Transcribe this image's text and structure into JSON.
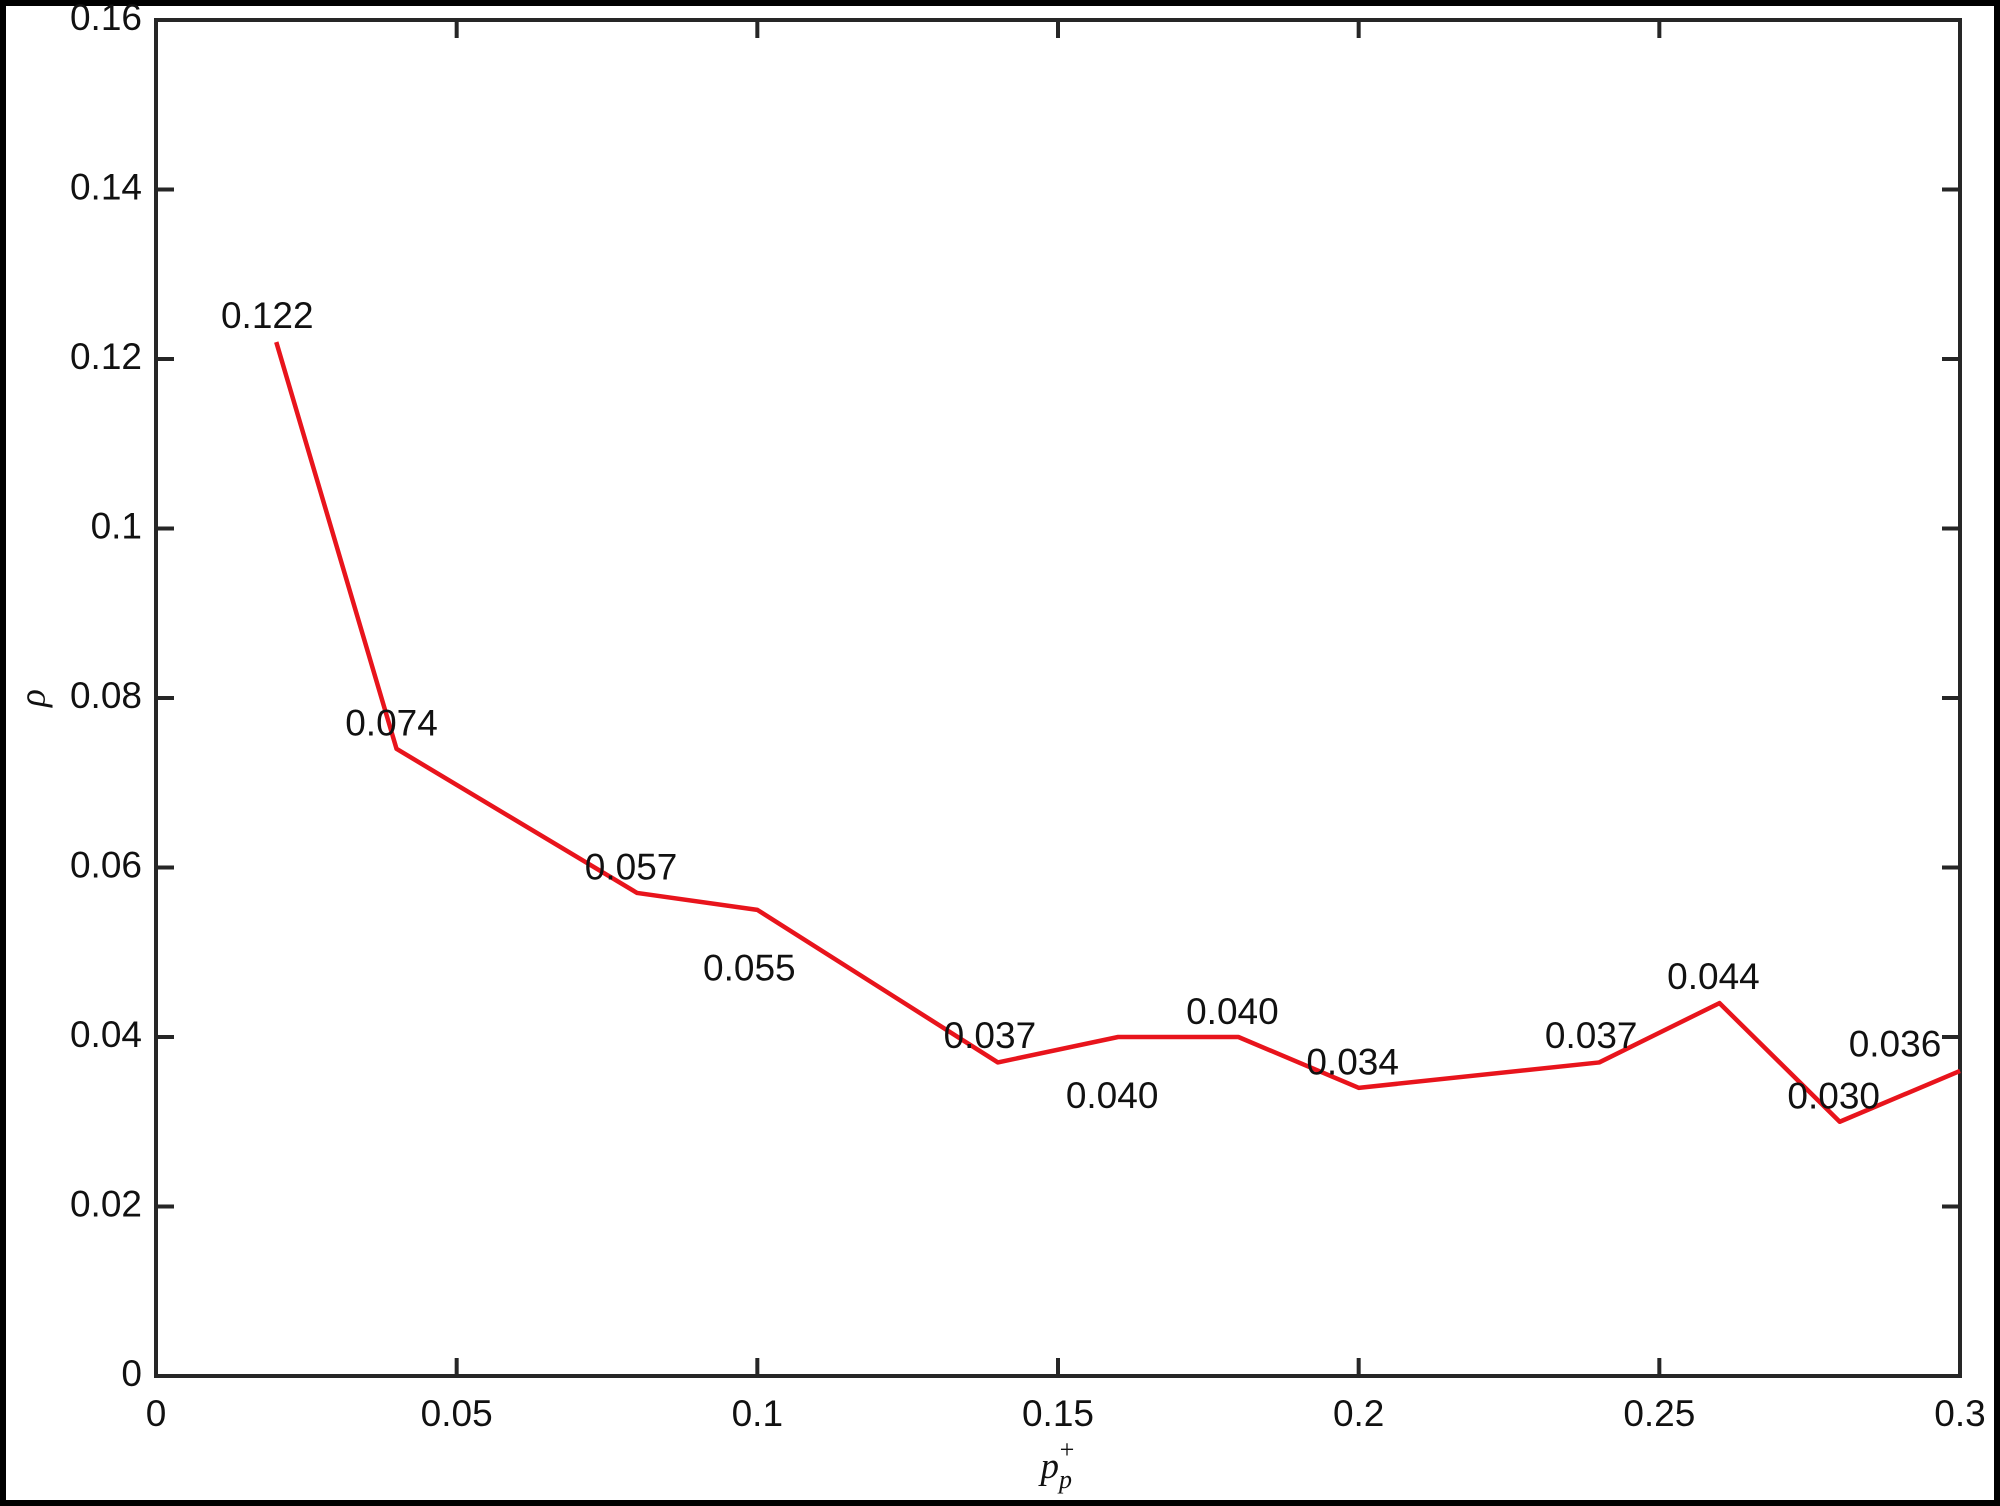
{
  "chart_data": {
    "type": "line",
    "xlabel": {
      "base": "p",
      "sub": "p",
      "sup": "+"
    },
    "ylabel": "ρ",
    "x": [
      0.02,
      0.04,
      0.08,
      0.1,
      0.14,
      0.16,
      0.18,
      0.2,
      0.24,
      0.26,
      0.28,
      0.3
    ],
    "series": [
      {
        "color": "#e8141c",
        "values": [
          0.122,
          0.074,
          0.057,
          0.055,
          0.037,
          0.04,
          0.04,
          0.034,
          0.037,
          0.044,
          0.03,
          0.036
        ],
        "value_labels": [
          "0.122",
          "0.074",
          "0.057",
          "0.055",
          "0.037",
          "0.040",
          "0.040",
          "0.034",
          "0.037",
          "0.044",
          "0.030",
          "0.036"
        ]
      }
    ],
    "xlim": [
      0,
      0.3
    ],
    "xticks": [
      0,
      0.05,
      0.1,
      0.15,
      0.2,
      0.25,
      0.3
    ],
    "ylim": [
      0,
      0.16
    ],
    "yticks": [
      0,
      0.02,
      0.04,
      0.06,
      0.08,
      0.1,
      0.12,
      0.14,
      0.16
    ],
    "grid": false
  }
}
